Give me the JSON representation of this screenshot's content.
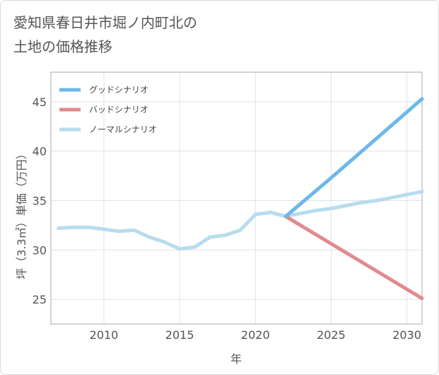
{
  "chart_data": {
    "type": "line",
    "title_lines": [
      "愛知県春日井市堀ノ内町北の",
      "土地の価格推移"
    ],
    "xlabel": "年",
    "ylabel": "坪（3.3㎡）単価（万円）",
    "xlim": [
      2006.5,
      2031
    ],
    "ylim": [
      22.5,
      48
    ],
    "x_ticks": [
      2010,
      2015,
      2020,
      2025,
      2030
    ],
    "y_ticks": [
      25,
      30,
      35,
      40,
      45
    ],
    "legend_position": "top-left",
    "series": [
      {
        "name": "グッドシナリオ",
        "color": "#6cb8ea",
        "x": [
          2022,
          2025,
          2031
        ],
        "values": [
          33.4,
          37.3,
          45.3
        ]
      },
      {
        "name": "バッドシナリオ",
        "color": "#e08b90",
        "x": [
          2022,
          2031
        ],
        "values": [
          33.4,
          25.1
        ]
      },
      {
        "name": "ノーマルシナリオ",
        "color": "#b8dcee",
        "x": [
          2007,
          2008,
          2009,
          2010,
          2011,
          2012,
          2013,
          2014,
          2015,
          2016,
          2017,
          2018,
          2019,
          2020,
          2021,
          2022,
          2023,
          2024,
          2025,
          2026,
          2027,
          2028,
          2029,
          2030,
          2031
        ],
        "values": [
          32.2,
          32.3,
          32.3,
          32.1,
          31.9,
          32.0,
          31.3,
          30.8,
          30.1,
          30.3,
          31.3,
          31.5,
          32.0,
          33.6,
          33.8,
          33.4,
          33.7,
          34.0,
          34.2,
          34.5,
          34.8,
          35.0,
          35.3,
          35.6,
          35.9
        ]
      }
    ]
  }
}
